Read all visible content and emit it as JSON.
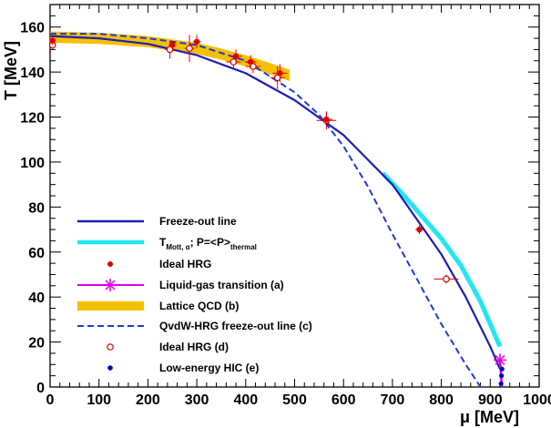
{
  "chart_data": {
    "type": "line",
    "xlabel_sym": "μ",
    "xlabel_unit": " [MeV]",
    "ylabel": "T [MeV]",
    "xlim": [
      0,
      1000
    ],
    "ylim": [
      0,
      170
    ],
    "xticks": [
      0,
      100,
      200,
      300,
      400,
      500,
      600,
      700,
      800,
      900,
      1000
    ],
    "yticks": [
      0,
      20,
      40,
      60,
      80,
      100,
      120,
      140,
      160
    ],
    "colors": {
      "freeze_out": "#1e1eb4",
      "mott": "#20e8f0",
      "liquid_gas": "#e000e0",
      "lattice": "#f5c000",
      "qvdw": "#1e3cd2",
      "points": "#e00000",
      "hic": "#0000cc"
    },
    "series": [
      {
        "name": "Freeze-out line",
        "kind": "line",
        "x": [
          0,
          100,
          200,
          300,
          400,
          500,
          600,
          700,
          800,
          850,
          900,
          920
        ],
        "y": [
          156,
          155,
          152.5,
          147.5,
          139.5,
          127.5,
          112,
          90,
          59,
          40,
          18,
          8
        ]
      },
      {
        "name": "T_Mott,α; P=<P>_thermal",
        "label_main": "T",
        "label_sub1": "Mott, α",
        "label_mid": "; P=<P>",
        "label_sub2": "thermal",
        "kind": "line",
        "x": [
          680,
          720,
          760,
          800,
          840,
          880,
          920
        ],
        "y": [
          95,
          86,
          76,
          66,
          54,
          38,
          18
        ]
      },
      {
        "name": "Ideal HRG",
        "kind": "points",
        "x": [
          5,
          250,
          300,
          380,
          410,
          470,
          565,
          755
        ],
        "y": [
          154,
          152,
          153.5,
          147,
          144.5,
          139.5,
          119,
          70
        ],
        "xerr": [
          5,
          8,
          8,
          12,
          12,
          15,
          12,
          8
        ],
        "yerr": [
          2,
          2,
          3,
          3,
          3,
          4,
          3,
          2
        ]
      },
      {
        "name": "Liquid-gas transition (a)",
        "kind": "star",
        "x": [
          920
        ],
        "y": [
          12
        ]
      },
      {
        "name": "Lattice QCD (b)",
        "kind": "band",
        "x": [
          0,
          100,
          200,
          300,
          350,
          400,
          450,
          490
        ],
        "y": [
          155.5,
          155,
          153.5,
          150.5,
          148,
          145,
          141.5,
          138.5
        ],
        "width": 2.5
      },
      {
        "name": "QvdW-HRG freeze-out line (c)",
        "kind": "dashed",
        "x": [
          0,
          100,
          200,
          300,
          400,
          500,
          550,
          600,
          650,
          700,
          750,
          800,
          850,
          880
        ],
        "y": [
          157,
          157,
          155,
          152,
          145,
          131,
          121,
          107,
          89,
          68,
          48,
          28,
          10,
          0
        ]
      },
      {
        "name": "Ideal HRG (d)",
        "kind": "open",
        "x": [
          5,
          245,
          285,
          375,
          415,
          465,
          565,
          810
        ],
        "y": [
          152,
          150,
          150.5,
          144.5,
          142.5,
          137.5,
          118.5,
          48
        ],
        "xerr": [
          5,
          10,
          10,
          15,
          15,
          15,
          20,
          25
        ],
        "yerr": [
          2,
          4,
          6,
          3,
          3,
          5,
          4,
          2
        ]
      },
      {
        "name": "Low-energy HIC (e)",
        "kind": "dots",
        "x": [
          922,
          923,
          924
        ],
        "y": [
          1.5,
          5,
          8
        ]
      }
    ]
  }
}
